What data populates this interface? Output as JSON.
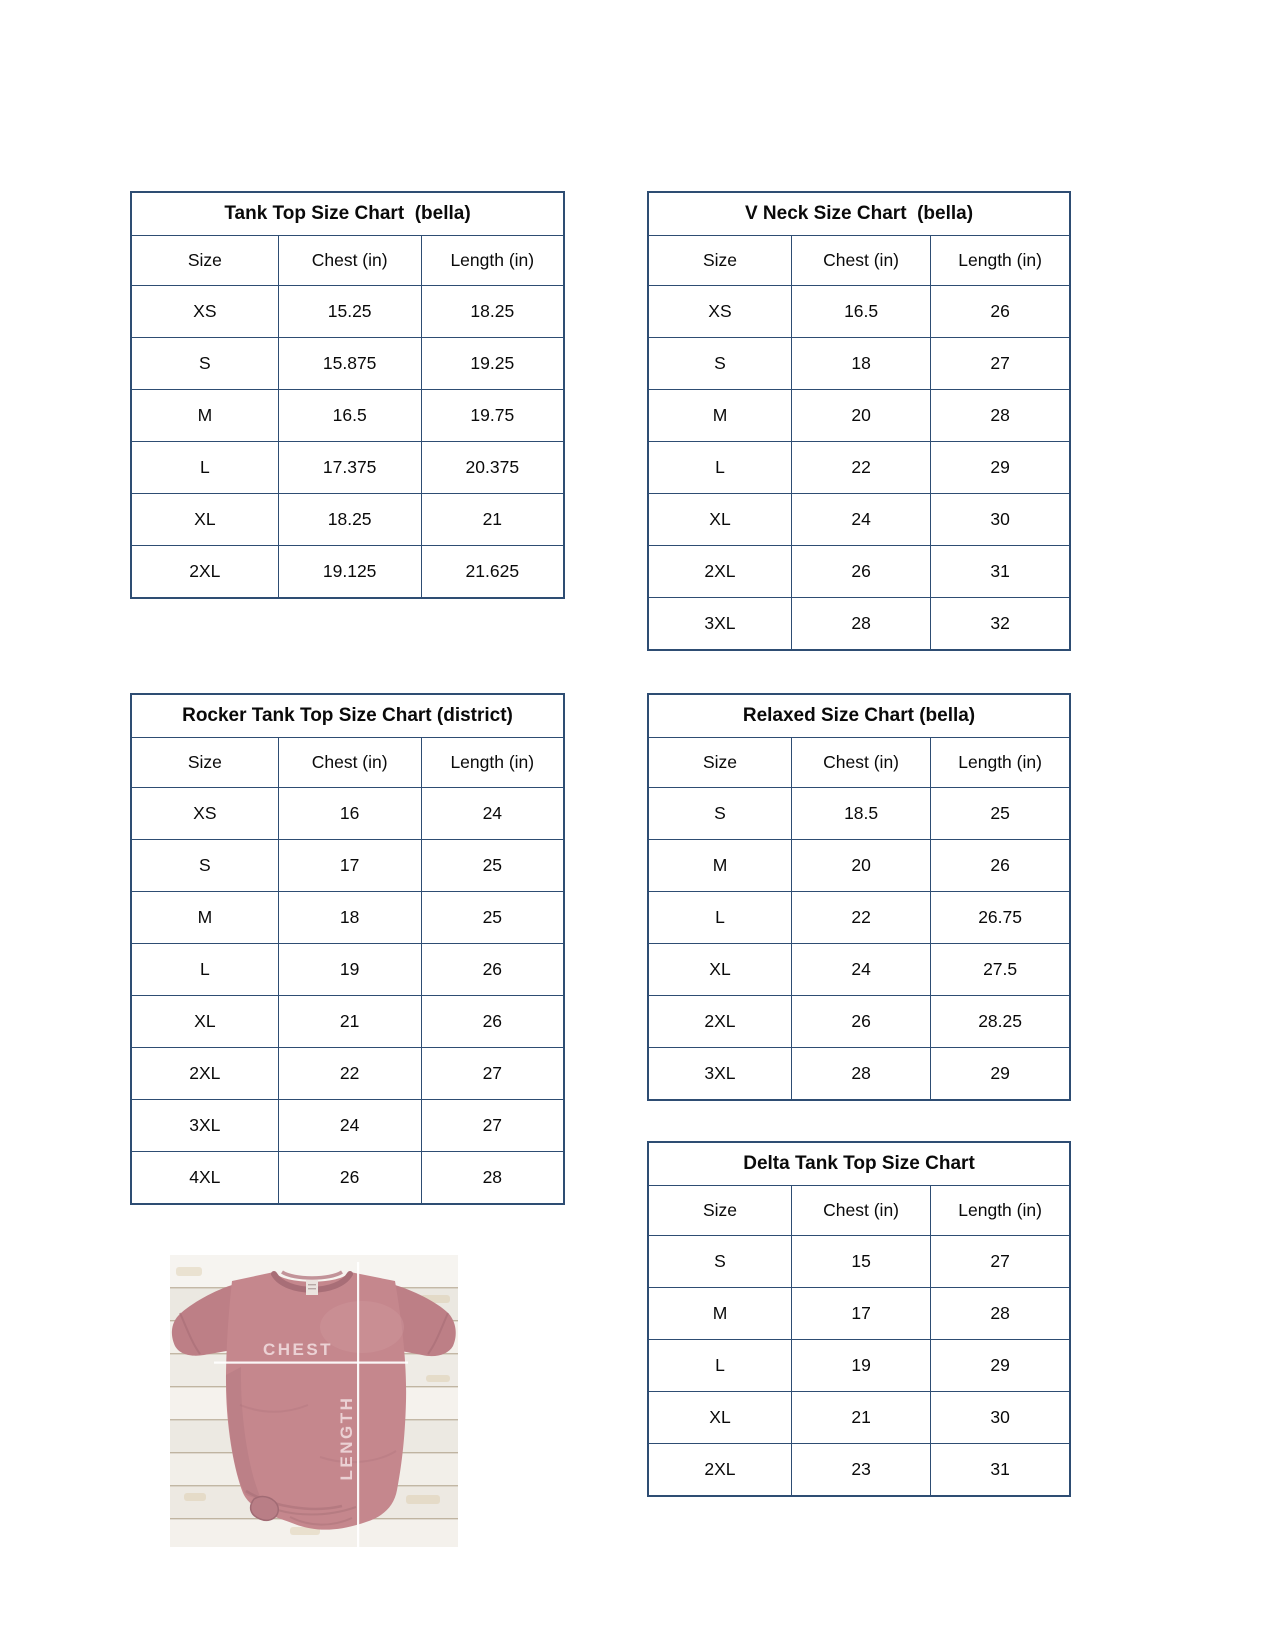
{
  "colors": {
    "table_border": "#2e4d73",
    "text": "#0a0a0a",
    "shirt_base": "#c5878d",
    "measure_line": "#ffffff"
  },
  "tables": [
    {
      "title": "Tank Top Size Chart  (bella)",
      "columns": [
        "Size",
        "Chest (in)",
        "Length (in)"
      ],
      "rows": [
        [
          "XS",
          "15.25",
          "18.25"
        ],
        [
          "S",
          "15.875",
          "19.25"
        ],
        [
          "M",
          "16.5",
          "19.75"
        ],
        [
          "L",
          "17.375",
          "20.375"
        ],
        [
          "XL",
          "18.25",
          "21"
        ],
        [
          "2XL",
          "19.125",
          "21.625"
        ]
      ]
    },
    {
      "title": "V Neck Size Chart  (bella)",
      "columns": [
        "Size",
        "Chest (in)",
        "Length (in)"
      ],
      "rows": [
        [
          "XS",
          "16.5",
          "26"
        ],
        [
          "S",
          "18",
          "27"
        ],
        [
          "M",
          "20",
          "28"
        ],
        [
          "L",
          "22",
          "29"
        ],
        [
          "XL",
          "24",
          "30"
        ],
        [
          "2XL",
          "26",
          "31"
        ],
        [
          "3XL",
          "28",
          "32"
        ]
      ]
    },
    {
      "title": "Rocker Tank Top Size Chart (district)",
      "columns": [
        "Size",
        "Chest (in)",
        "Length (in)"
      ],
      "rows": [
        [
          "XS",
          "16",
          "24"
        ],
        [
          "S",
          "17",
          "25"
        ],
        [
          "M",
          "18",
          "25"
        ],
        [
          "L",
          "19",
          "26"
        ],
        [
          "XL",
          "21",
          "26"
        ],
        [
          "2XL",
          "22",
          "27"
        ],
        [
          "3XL",
          "24",
          "27"
        ],
        [
          "4XL",
          "26",
          "28"
        ]
      ]
    },
    {
      "title": "Relaxed Size Chart (bella)",
      "columns": [
        "Size",
        "Chest (in)",
        "Length (in)"
      ],
      "rows": [
        [
          "S",
          "18.5",
          "25"
        ],
        [
          "M",
          "20",
          "26"
        ],
        [
          "L",
          "22",
          "26.75"
        ],
        [
          "XL",
          "24",
          "27.5"
        ],
        [
          "2XL",
          "26",
          "28.25"
        ],
        [
          "3XL",
          "28",
          "29"
        ]
      ]
    },
    {
      "title": "Delta Tank Top Size Chart",
      "columns": [
        "Size",
        "Chest (in)",
        "Length (in)"
      ],
      "rows": [
        [
          "S",
          "15",
          "27"
        ],
        [
          "M",
          "17",
          "28"
        ],
        [
          "L",
          "19",
          "29"
        ],
        [
          "XL",
          "21",
          "30"
        ],
        [
          "2XL",
          "23",
          "31"
        ]
      ]
    }
  ],
  "photo": {
    "chest_label": "CHEST",
    "length_label": "LENGTH"
  }
}
